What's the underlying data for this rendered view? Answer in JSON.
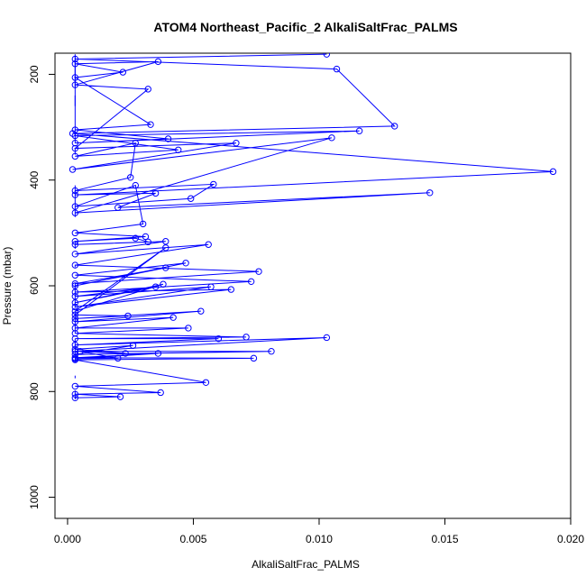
{
  "chart_data": {
    "type": "line",
    "title": "ATOM4 Northeast_Pacific_2 AlkaliSaltFrac_PALMS",
    "xlabel": "AlkaliSaltFrac_PALMS",
    "ylabel": "Pressure (mbar)",
    "xlim": [
      -0.0005,
      0.02
    ],
    "ylim": [
      1040,
      160
    ],
    "x_ticks": [
      0.0,
      0.005,
      0.01,
      0.015,
      0.02
    ],
    "x_tick_labels": [
      "0.000",
      "0.005",
      "0.010",
      "0.015",
      "0.020"
    ],
    "y_ticks": [
      200,
      400,
      600,
      800,
      1000
    ],
    "y_tick_labels": [
      "200",
      "400",
      "600",
      "800",
      "1000"
    ],
    "y_inverted": true,
    "grid": false,
    "marker": "open-circle",
    "line_color": "#0000ff",
    "series": [
      {
        "values": [
          [
            0.0103,
            162
          ],
          [
            0.0003,
            171
          ],
          [
            0.0107,
            190
          ],
          [
            0.013,
            298
          ],
          [
            0.0002,
            312
          ],
          [
            0.0193,
            384
          ],
          [
            0.0003,
            428
          ],
          [
            0.0035,
            425
          ],
          [
            0.002,
            452
          ],
          [
            0.0144,
            424
          ],
          [
            0.0003,
            462
          ],
          [
            0.0105,
            320
          ],
          [
            0.0002,
            380
          ],
          [
            0.0067,
            330
          ],
          [
            0.0003,
            340
          ],
          [
            0.0032,
            228
          ],
          [
            0.0003,
            220
          ],
          [
            0.0036,
            176
          ],
          [
            0.0003,
            180
          ],
          [
            0.0022,
            196
          ],
          [
            0.0003,
            206
          ],
          [
            0.0033,
            295
          ],
          [
            0.0003,
            305
          ],
          [
            0.004,
            322
          ],
          [
            0.0003,
            330
          ],
          [
            0.0116,
            307
          ],
          [
            0.0003,
            316
          ],
          [
            0.0044,
            343
          ],
          [
            0.0003,
            355
          ],
          [
            0.0027,
            330
          ],
          [
            0.0025,
            395
          ],
          [
            0.0003,
            420
          ],
          [
            0.0058,
            408
          ],
          [
            0.0049,
            435
          ],
          [
            0.0003,
            450
          ],
          [
            0.0027,
            410
          ],
          [
            0.003,
            483
          ],
          [
            0.0003,
            500
          ],
          [
            0.0031,
            507
          ],
          [
            0.0003,
            516
          ],
          [
            0.0027,
            510
          ],
          [
            0.0032,
            517
          ],
          [
            0.0003,
            522
          ],
          [
            0.0039,
            516
          ],
          [
            0.0003,
            540
          ],
          [
            0.0056,
            522
          ],
          [
            0.0003,
            561
          ],
          [
            0.0076,
            573
          ],
          [
            0.0003,
            596
          ],
          [
            0.0039,
            566
          ],
          [
            0.0003,
            600
          ],
          [
            0.0047,
            557
          ],
          [
            0.0003,
            580
          ],
          [
            0.0073,
            592
          ],
          [
            0.0003,
            612
          ],
          [
            0.0065,
            607
          ],
          [
            0.0003,
            640
          ],
          [
            0.0057,
            602
          ],
          [
            0.0003,
            620
          ],
          [
            0.0035,
            602
          ],
          [
            0.0003,
            632
          ],
          [
            0.0038,
            597
          ],
          [
            0.0003,
            648
          ],
          [
            0.0039,
            528
          ],
          [
            0.0003,
            655
          ],
          [
            0.0024,
            657
          ],
          [
            0.0003,
            662
          ],
          [
            0.0053,
            648
          ],
          [
            0.0003,
            668
          ],
          [
            0.0042,
            660
          ],
          [
            0.0003,
            680
          ],
          [
            0.0048,
            680
          ],
          [
            0.0003,
            690
          ],
          [
            0.0071,
            697
          ],
          [
            0.0003,
            700
          ],
          [
            0.006,
            700
          ],
          [
            0.0003,
            712
          ],
          [
            0.0103,
            698
          ],
          [
            0.0003,
            724
          ],
          [
            0.0081,
            724
          ],
          [
            0.0003,
            730
          ],
          [
            0.0026,
            713
          ],
          [
            0.0003,
            720
          ],
          [
            0.0023,
            728
          ],
          [
            0.0005,
            724
          ],
          [
            0.002,
            737
          ],
          [
            0.0003,
            738
          ],
          [
            0.0036,
            728
          ],
          [
            0.0003,
            736
          ],
          [
            0.0074,
            737
          ],
          [
            0.0003,
            740
          ],
          [
            0.0055,
            783
          ],
          [
            0.0003,
            790
          ],
          [
            0.0037,
            802
          ],
          [
            0.0003,
            805
          ],
          [
            0.0021,
            810
          ],
          [
            0.0003,
            812
          ]
        ]
      }
    ],
    "stems_x": 0.0003,
    "stems": [
      [
        162,
        260
      ],
      [
        165,
        225
      ],
      [
        240,
        330
      ],
      [
        340,
        352
      ],
      [
        410,
        470
      ],
      [
        515,
        530
      ],
      [
        560,
        565
      ],
      [
        595,
        640
      ],
      [
        650,
        690
      ],
      [
        700,
        745
      ],
      [
        770,
        775
      ],
      [
        798,
        815
      ]
    ]
  }
}
